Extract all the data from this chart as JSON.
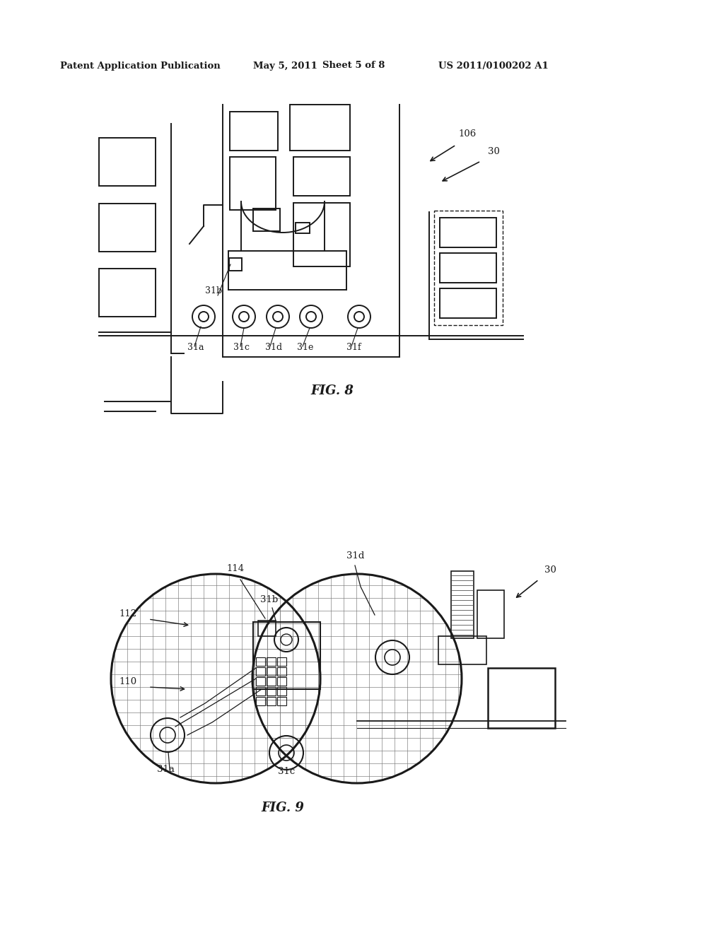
{
  "background_color": "#ffffff",
  "header_text": "Patent Application Publication",
  "header_date": "May 5, 2011",
  "header_sheet": "Sheet 5 of 8",
  "header_patent": "US 2011/0100202 A1",
  "fig8_label": "FIG. 8",
  "fig9_label": "FIG. 9",
  "line_color": "#1a1a1a",
  "grid_color": "#777777"
}
